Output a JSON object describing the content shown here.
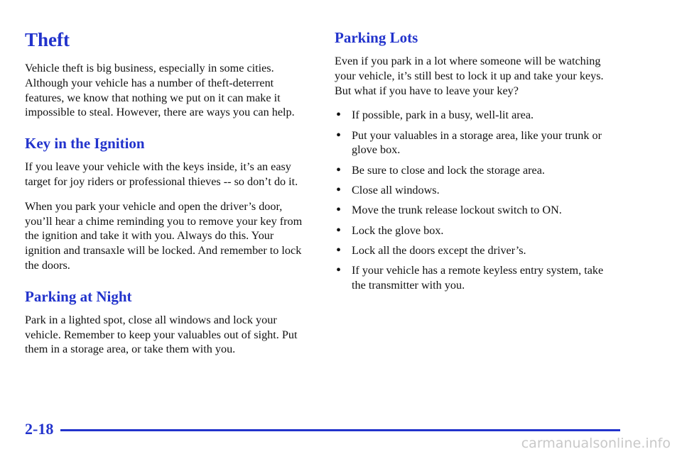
{
  "left": {
    "title": "Theft",
    "intro": "Vehicle theft is big business, especially in some cities. Although your vehicle has a number of theft-deterrent features, we know that nothing we put on it can make it impossible to steal. However, there are ways you can help.",
    "sections": [
      {
        "heading": "Key in the Ignition",
        "paragraphs": [
          "If you leave your vehicle with the keys inside, it’s an easy target for joy riders or professional thieves -- so don’t do it.",
          "When you park your vehicle and open the driver’s door, you’ll hear a chime reminding you to remove your key from the ignition and take it with you. Always do this. Your ignition and transaxle will be locked. And remember to lock the doors."
        ]
      },
      {
        "heading": "Parking at Night",
        "paragraphs": [
          "Park in a lighted spot, close all windows and lock your vehicle. Remember to keep your valuables out of sight. Put them in a storage area, or take them with you."
        ]
      }
    ]
  },
  "right": {
    "heading": "Parking Lots",
    "intro": "Even if you park in a lot where someone will be watching your vehicle, it’s still best to lock it up and take your keys. But what if you have to leave your key?",
    "bullets": [
      "If possible, park in a busy, well-lit area.",
      "Put your valuables in a storage area, like your trunk or glove box.",
      "Be sure to close and lock the storage area.",
      "Close all windows.",
      "Move the trunk release lockout switch to ON.",
      "Lock the glove box.",
      "Lock all the doors except the driver’s.",
      "If your vehicle has a remote keyless entry system, take the transmitter with you."
    ]
  },
  "footer": {
    "page": "2-18",
    "watermark": "carmanualsonline.info"
  }
}
